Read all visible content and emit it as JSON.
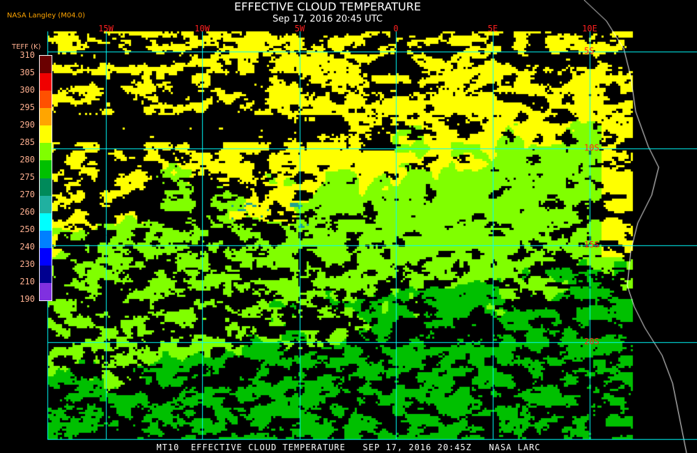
{
  "header": {
    "title": "EFFECTIVE CLOUD TEMPERATURE",
    "subtitle": "Sep 17, 2016 20:45 UTC",
    "credit": "NASA Langley (M04.0)"
  },
  "legend": {
    "title": "TEFF (K)",
    "ticks": [
      "310",
      "305",
      "300",
      "295",
      "290",
      "285",
      "280",
      "275",
      "270",
      "260",
      "250",
      "240",
      "230",
      "210",
      "190"
    ],
    "colors": [
      "#6a0000",
      "#f00000",
      "#ff5000",
      "#ffa500",
      "#ffff00",
      "#80ff00",
      "#00c000",
      "#008a5a",
      "#20b0a0",
      "#00ffff",
      "#0080ff",
      "#0000ff",
      "#000090",
      "#8030e0"
    ]
  },
  "map": {
    "lon_labels": [
      "15W",
      "10W",
      "5W",
      "0",
      "5E",
      "10E"
    ],
    "lat_labels": [
      "5S",
      "10S",
      "15S",
      "20S"
    ],
    "grid_color": "#00ffff",
    "coast_color": "#ffffff",
    "label_color": "#ff2020"
  },
  "footer": {
    "text": "MT10  EFFECTIVE CLOUD TEMPERATURE   SEP 17, 2016 20:45Z   NASA LARC"
  }
}
